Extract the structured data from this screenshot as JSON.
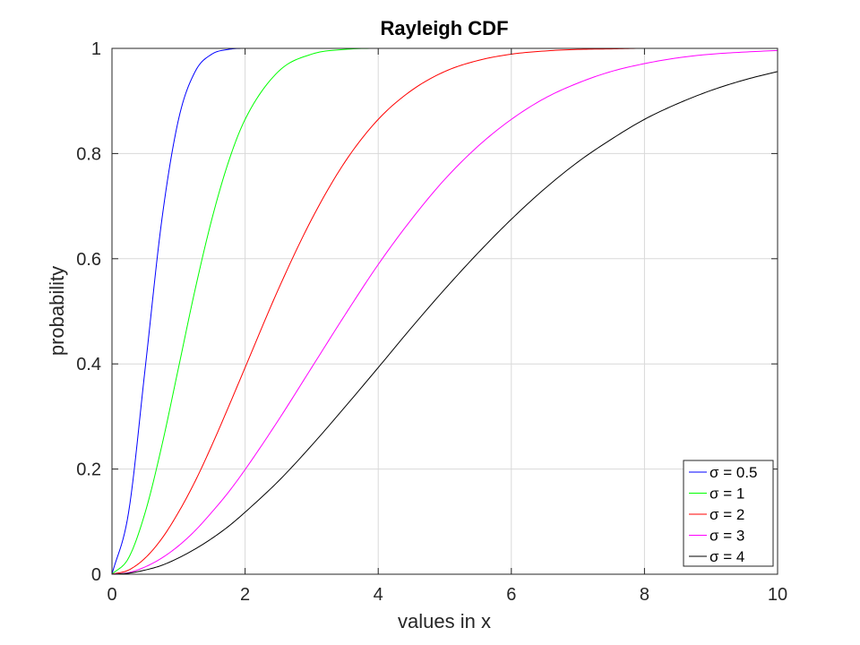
{
  "chart_data": {
    "type": "line",
    "title": "Rayleigh CDF",
    "xlabel": "values in x",
    "ylabel": "probability",
    "xlim": [
      0,
      10
    ],
    "ylim": [
      0,
      1
    ],
    "xticks": [
      0,
      2,
      4,
      6,
      8,
      10
    ],
    "xtick_labels": [
      "0",
      "2",
      "4",
      "6",
      "8",
      "10"
    ],
    "yticks": [
      0,
      0.2,
      0.4,
      0.6,
      0.8,
      1
    ],
    "ytick_labels": [
      "0",
      "0.2",
      "0.4",
      "0.6",
      "0.8",
      "1"
    ],
    "grid": true,
    "legend_position": "bottom-right",
    "x": [
      0,
      0.25,
      0.5,
      0.75,
      1,
      1.25,
      1.5,
      1.75,
      2,
      2.5,
      3,
      3.5,
      4,
      4.5,
      5,
      5.5,
      6,
      6.5,
      7,
      7.5,
      8,
      8.5,
      9,
      9.5,
      10
    ],
    "series": [
      {
        "name": "σ = 0.5",
        "color": "#0000ff",
        "values": [
          0,
          0.118,
          0.393,
          0.675,
          0.865,
          0.956,
          0.989,
          0.998,
          1,
          1,
          1,
          1,
          1,
          1,
          1,
          1,
          1,
          1,
          1,
          1,
          1,
          1,
          1,
          1,
          1
        ]
      },
      {
        "name": "σ = 1",
        "color": "#00ff00",
        "values": [
          0,
          0.031,
          0.118,
          0.245,
          0.393,
          0.542,
          0.675,
          0.784,
          0.865,
          0.956,
          0.989,
          0.998,
          1,
          1,
          1,
          1,
          1,
          1,
          1,
          1,
          1,
          1,
          1,
          1,
          1
        ]
      },
      {
        "name": "σ = 2",
        "color": "#ff0000",
        "values": [
          0,
          0.008,
          0.031,
          0.068,
          0.118,
          0.177,
          0.245,
          0.318,
          0.393,
          0.542,
          0.675,
          0.784,
          0.865,
          0.92,
          0.956,
          0.977,
          0.989,
          0.995,
          0.998,
          0.999,
          1,
          1,
          1,
          1,
          1
        ]
      },
      {
        "name": "σ = 3",
        "color": "#ff00ff",
        "values": [
          0,
          0.003,
          0.014,
          0.031,
          0.054,
          0.083,
          0.118,
          0.156,
          0.199,
          0.293,
          0.393,
          0.493,
          0.589,
          0.675,
          0.751,
          0.814,
          0.865,
          0.905,
          0.934,
          0.956,
          0.971,
          0.982,
          0.989,
          0.993,
          0.996
        ]
      },
      {
        "name": "σ = 4",
        "color": "#000000",
        "values": [
          0,
          0.002,
          0.008,
          0.017,
          0.031,
          0.048,
          0.068,
          0.091,
          0.118,
          0.177,
          0.245,
          0.318,
          0.393,
          0.469,
          0.542,
          0.611,
          0.675,
          0.733,
          0.784,
          0.827,
          0.865,
          0.895,
          0.92,
          0.94,
          0.956
        ]
      }
    ]
  }
}
